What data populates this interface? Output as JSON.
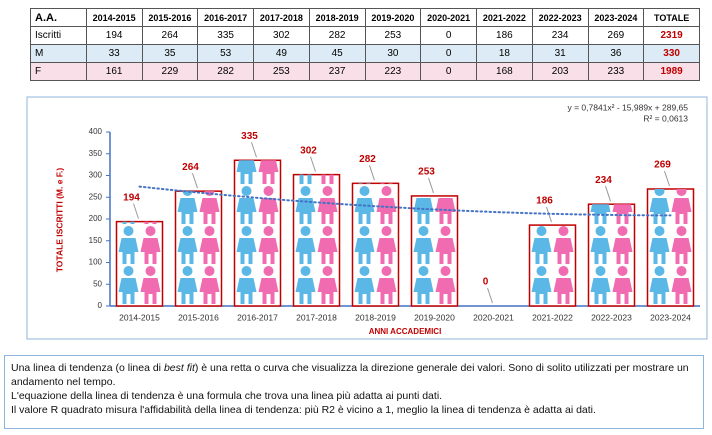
{
  "table": {
    "header": [
      "A.A.",
      "2014-2015",
      "2015-2016",
      "2016-2017",
      "2017-2018",
      "2018-2019",
      "2019-2020",
      "2020-2021",
      "2021-2022",
      "2022-2023",
      "2023-2024",
      "TOTALE"
    ],
    "rows": [
      [
        "Iscritti",
        194,
        264,
        335,
        302,
        282,
        253,
        0,
        186,
        234,
        269,
        2319
      ],
      [
        "M",
        33,
        35,
        53,
        49,
        45,
        30,
        0,
        18,
        31,
        36,
        330
      ],
      [
        "F",
        161,
        229,
        282,
        253,
        237,
        223,
        0,
        168,
        203,
        233,
        1989
      ]
    ]
  },
  "chart_data": {
    "type": "bar",
    "ylabel": "TOTALE  ISCRITTI (M. e F.)",
    "xlabel": "ANNI ACCADEMICI",
    "equation": "y = 0,7841x² - 15,989x + 289,65",
    "r_squared": "R² = 0,0613",
    "categories": [
      "2014-2015",
      "2015-2016",
      "2016-2017",
      "2017-2018",
      "2018-2019",
      "2019-2020",
      "2020-2021",
      "2021-2022",
      "2022-2023",
      "2023-2024"
    ],
    "values": [
      194,
      264,
      335,
      302,
      282,
      253,
      0,
      186,
      234,
      269
    ],
    "color": "#c00000",
    "ylim": [
      0,
      400
    ],
    "yticks": [
      0,
      50,
      100,
      150,
      200,
      250,
      300,
      350,
      400
    ],
    "trendline": {
      "type": "polynomial",
      "order": 2,
      "color": "#4472c4",
      "style": "dotted"
    }
  },
  "note": {
    "paragraphs": [
      [
        "Una linea di tendenza (o linea di ",
        "best fit",
        ") è una retta o curva che visualizza la direzione generale dei valori. Sono di solito utilizzati per mostrare un andamento nel tempo."
      ],
      "L'equazione della linea di tendenza è una formula che trova una linea più adatta ai punti dati.",
      "Il valore R quadrato misura l'affidabilità della linea di tendenza: più R2 è vicino a 1, meglio la linea di tendenza è adatta ai dati."
    ]
  }
}
